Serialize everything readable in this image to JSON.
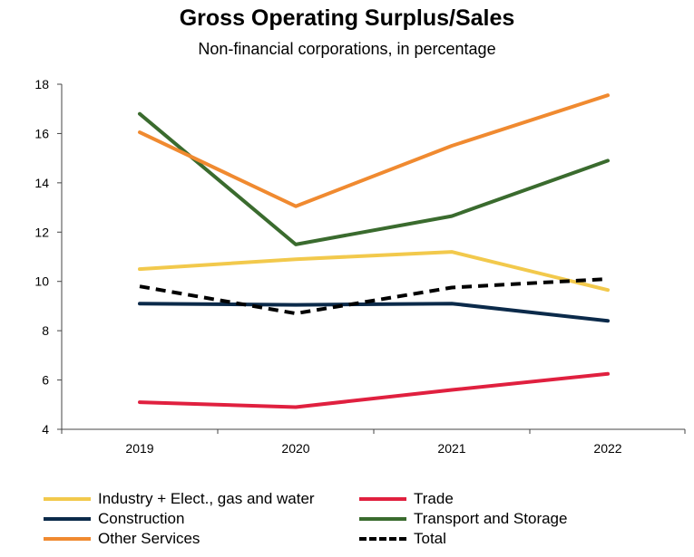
{
  "chart_data": {
    "type": "line",
    "title": "Gross Operating Surplus/Sales",
    "subtitle": "Non-financial corporations, in percentage",
    "xlabel": "",
    "ylabel": "",
    "categories": [
      "2019",
      "2020",
      "2021",
      "2022"
    ],
    "ylim": [
      4,
      18
    ],
    "yticks": [
      4,
      6,
      8,
      10,
      12,
      14,
      16,
      18
    ],
    "grid": false,
    "legend_position": "bottom",
    "series": [
      {
        "name": "Industry + Elect., gas and water",
        "color": "#F2C94C",
        "dashed": false,
        "values": [
          10.5,
          10.9,
          11.2,
          9.65
        ]
      },
      {
        "name": "Trade",
        "color": "#E0203F",
        "dashed": false,
        "values": [
          5.1,
          4.9,
          5.6,
          6.25
        ]
      },
      {
        "name": "Construction",
        "color": "#0B2A4A",
        "dashed": false,
        "values": [
          9.1,
          9.05,
          9.1,
          8.4
        ]
      },
      {
        "name": "Transport and Storage",
        "color": "#3A6B2E",
        "dashed": false,
        "values": [
          16.8,
          11.5,
          12.65,
          14.9
        ]
      },
      {
        "name": "Other Services",
        "color": "#F08A30",
        "dashed": false,
        "values": [
          16.05,
          13.05,
          15.5,
          17.55
        ]
      },
      {
        "name": "Total",
        "color": "#000000",
        "dashed": true,
        "values": [
          9.8,
          8.7,
          9.75,
          10.1
        ]
      }
    ]
  }
}
